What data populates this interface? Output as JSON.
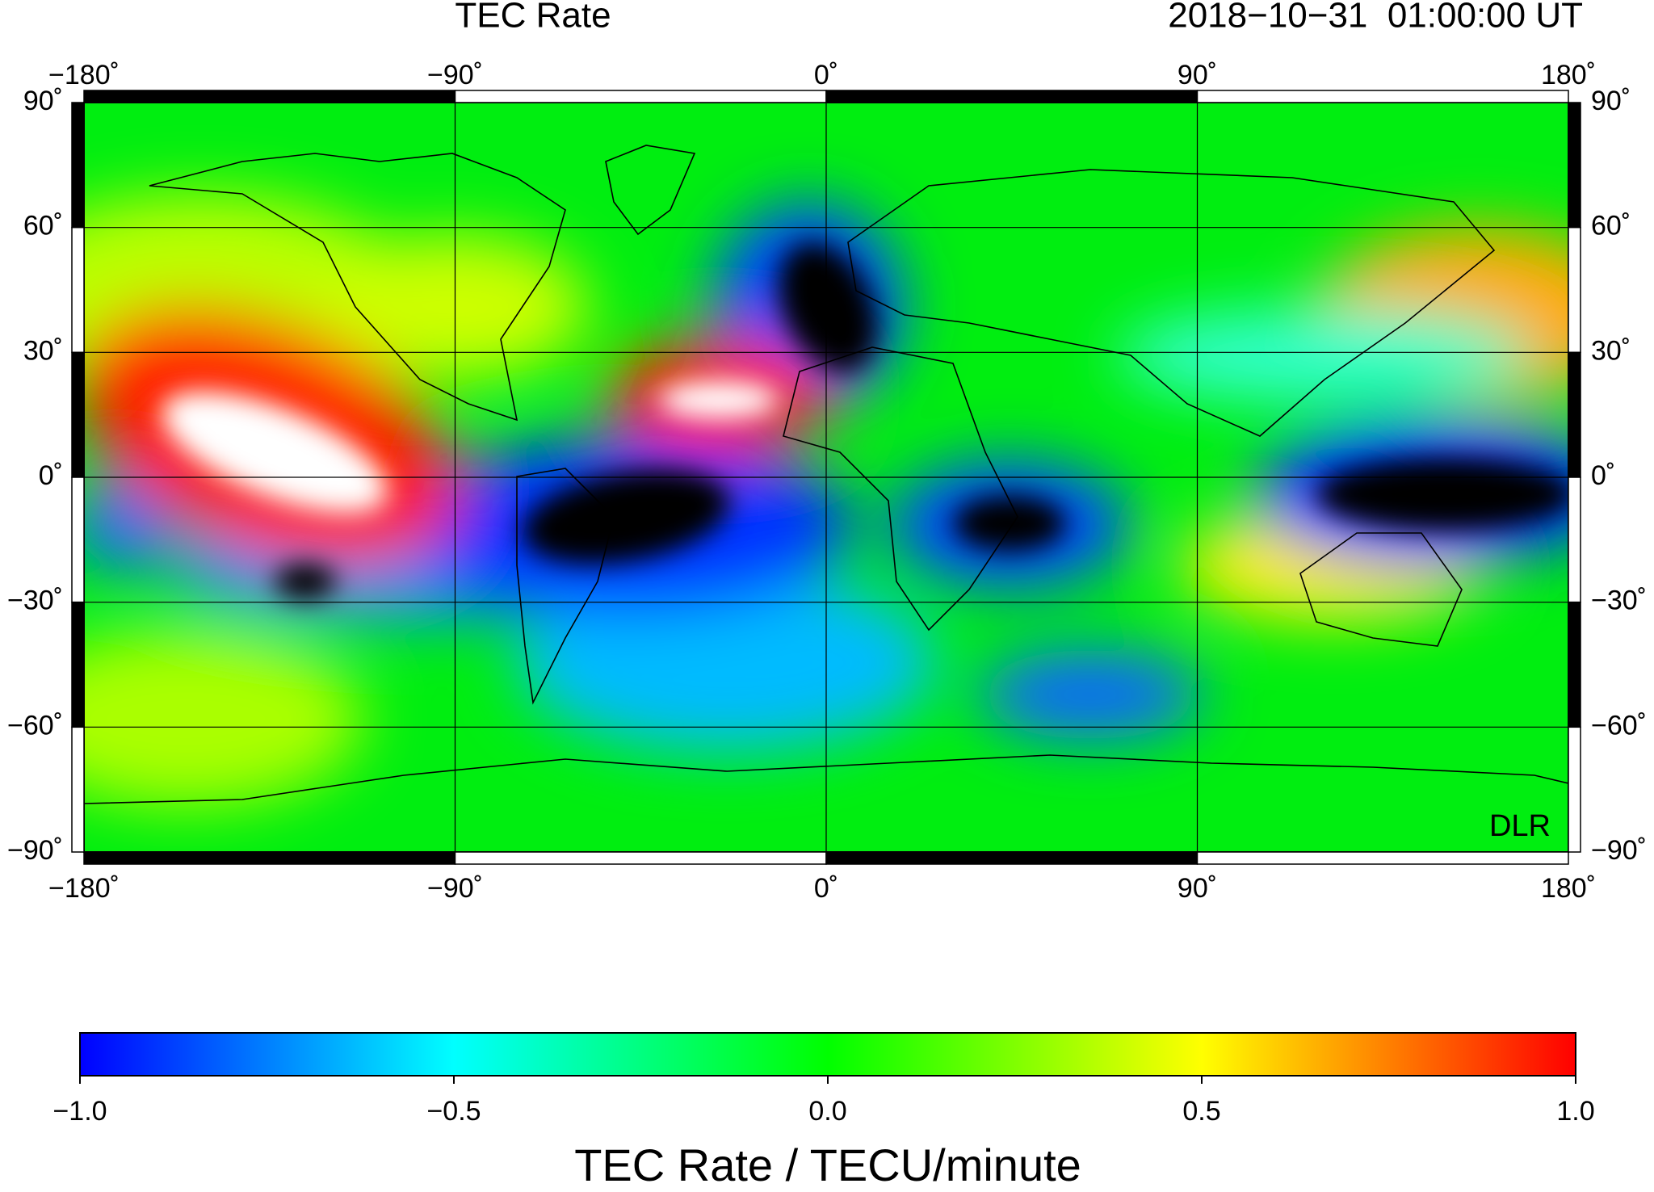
{
  "map": {
    "title": "TEC Rate",
    "timestamp": "2018−10−31  01:00:00 UT",
    "credit": "DLR",
    "lonlim": [
      -180,
      180
    ],
    "latlim": [
      -90,
      90
    ],
    "lon_ticks": [
      {
        "value": -180,
        "label": "−180˚"
      },
      {
        "value": -90,
        "label": "−90˚"
      },
      {
        "value": 0,
        "label": "0˚"
      },
      {
        "value": 90,
        "label": "90˚"
      },
      {
        "value": 180,
        "label": "180˚"
      }
    ],
    "lat_ticks": [
      {
        "value": 90,
        "label": "90˚"
      },
      {
        "value": 60,
        "label": "60˚"
      },
      {
        "value": 30,
        "label": "30˚"
      },
      {
        "value": 0,
        "label": "0˚"
      },
      {
        "value": -30,
        "label": "−30˚"
      },
      {
        "value": -60,
        "label": "−60˚"
      },
      {
        "value": -90,
        "label": "−90˚"
      }
    ]
  },
  "colorbar": {
    "label": "TEC Rate / TECU/minute",
    "lim": [
      -1,
      1
    ],
    "colors": [
      "#0000ff",
      "#00ffff",
      "#00ff00",
      "#ffff00",
      "#ff0000"
    ],
    "ticks": [
      {
        "value": -1,
        "label": "−1.0"
      },
      {
        "value": -0.5,
        "label": "−0.5"
      },
      {
        "value": 0,
        "label": "0.0"
      },
      {
        "value": 0.5,
        "label": "0.5"
      },
      {
        "value": 1,
        "label": "1.0"
      }
    ]
  }
}
